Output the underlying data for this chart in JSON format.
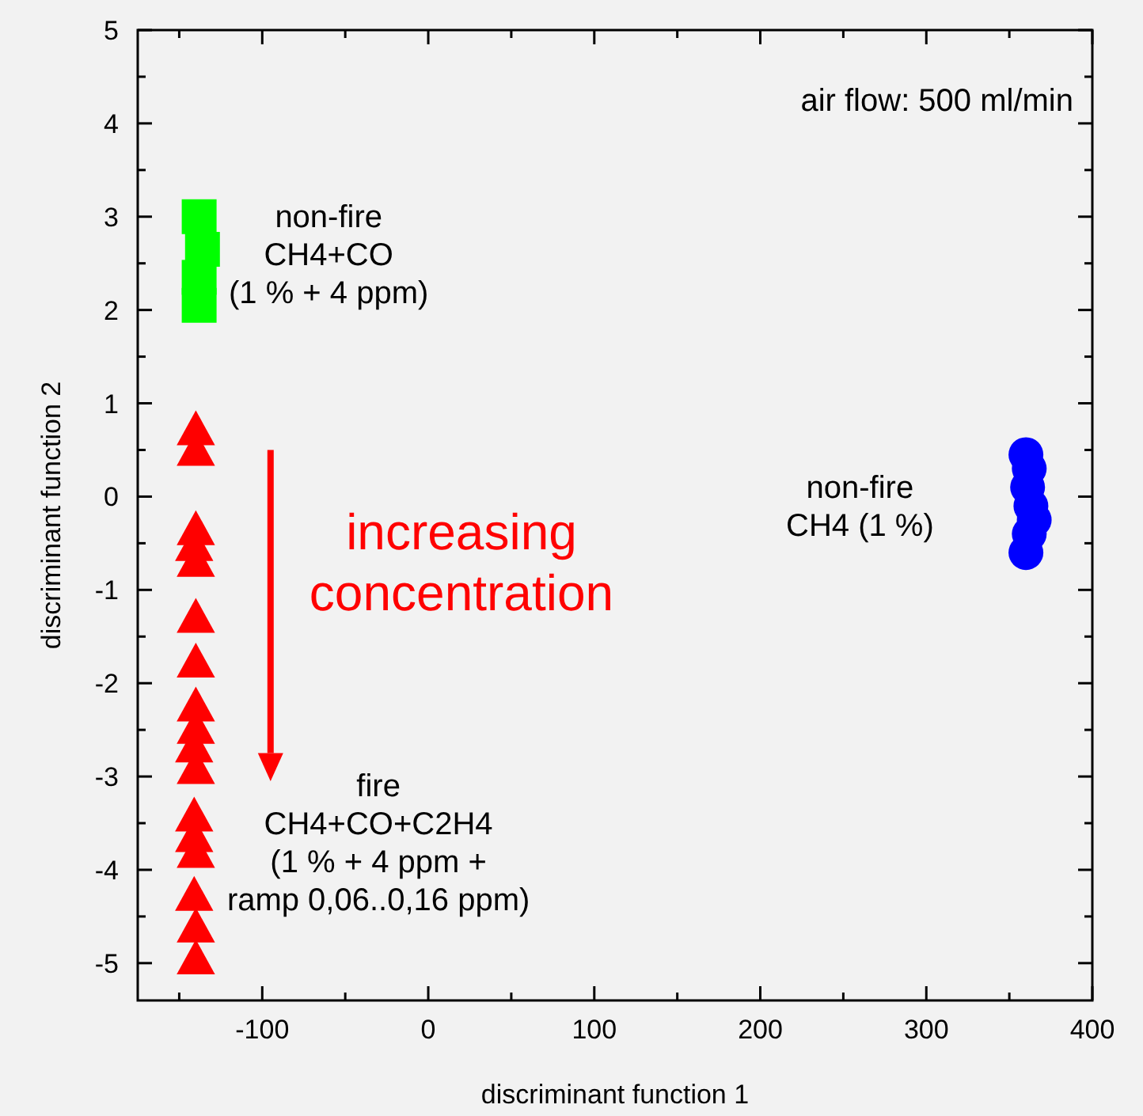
{
  "chart_data": {
    "type": "scatter",
    "xlabel": "discriminant function 1",
    "ylabel": "discriminant function 2",
    "xlim": [
      -175,
      400
    ],
    "ylim": [
      -5.4,
      5
    ],
    "xticks": [
      {
        "value": -150,
        "label": null
      },
      -100,
      {
        "value": -50,
        "label": null
      },
      0,
      {
        "value": 50,
        "label": null
      },
      100,
      {
        "value": 150,
        "label": null
      },
      200,
      {
        "value": 250,
        "label": null
      },
      300,
      {
        "value": 350,
        "label": null
      },
      400
    ],
    "yticks": [
      -5,
      {
        "value": -4.5,
        "label": null
      },
      -4,
      {
        "value": -3.5,
        "label": null
      },
      -3,
      {
        "value": -2.5,
        "label": null
      },
      -2,
      {
        "value": -1.5,
        "label": null
      },
      -1,
      {
        "value": -0.5,
        "label": null
      },
      0,
      {
        "value": 0.5,
        "label": null
      },
      1,
      {
        "value": 1.5,
        "label": null
      },
      2,
      {
        "value": 2.5,
        "label": null
      },
      3,
      {
        "value": 3.5,
        "label": null
      },
      4,
      {
        "value": 4.5,
        "label": null
      },
      5
    ],
    "grid": false,
    "series": [
      {
        "color": "#00ff00",
        "marker": "square",
        "x": [
          -138,
          -136,
          -138,
          -138
        ],
        "values": [
          3.0,
          2.65,
          2.35,
          2.05
        ]
      },
      {
        "color": "#0000ff",
        "marker": "circle",
        "x": [
          360,
          362,
          361,
          363,
          365,
          362,
          360
        ],
        "values": [
          0.45,
          0.3,
          0.1,
          -0.1,
          -0.25,
          -0.4,
          -0.6
        ]
      },
      {
        "color": "#ff0000",
        "marker": "triangle",
        "x": [
          -140,
          -140,
          -140,
          -141,
          -140,
          -140,
          -140,
          -140,
          -140,
          -141,
          -140,
          -141,
          -141,
          -140,
          -141,
          -140,
          -140
        ],
        "values": [
          0.7,
          0.48,
          -0.37,
          -0.54,
          -0.71,
          -1.31,
          -1.79,
          -2.26,
          -2.5,
          -2.7,
          -2.93,
          -3.44,
          -3.66,
          -3.83,
          -4.29,
          -4.63,
          -4.97
        ]
      }
    ],
    "annotations": [
      "air flow: 500 ml/min",
      "non-fire\nCH4+CO\n(1 % + 4 ppm)",
      "non-fire\nCH4 (1 %)",
      "increasing\nconcentration",
      "fire\nCH4+CO+C2H4\n(1 % + 4 ppm +\nramp 0,06..0,16 ppm)"
    ]
  }
}
